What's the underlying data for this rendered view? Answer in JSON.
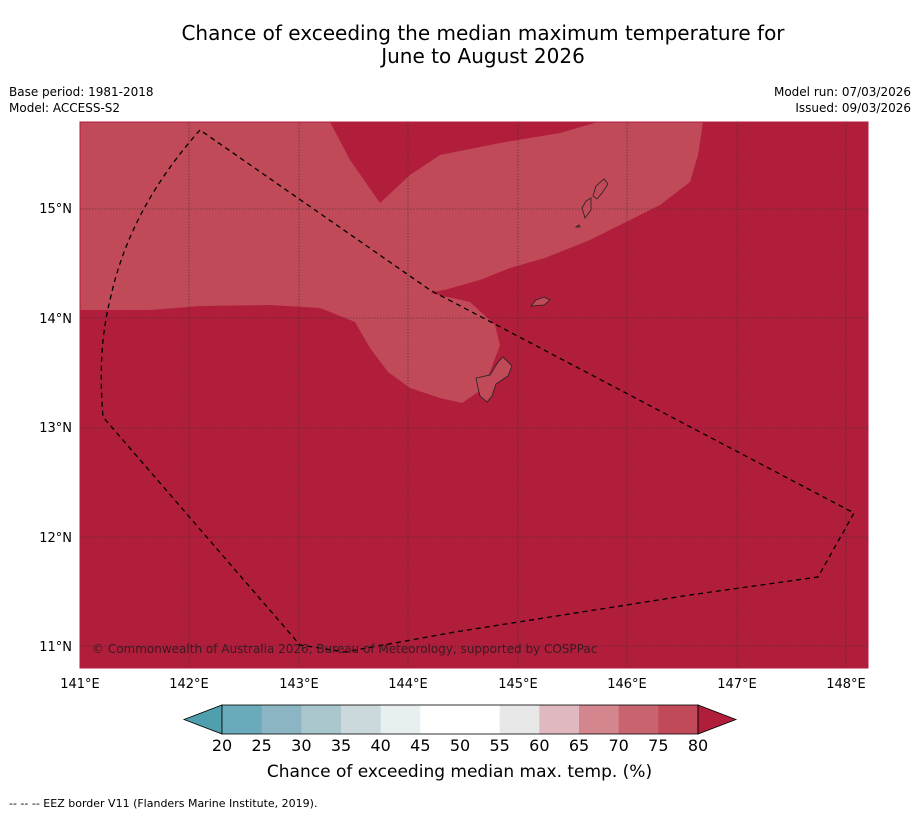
{
  "title_line1": "Chance of exceeding the median maximum temperature for",
  "title_line2": "June to August 2026",
  "base_period": "Base period: 1981-2018",
  "model": "Model: ACCESS-S2",
  "model_run": "Model run: 07/03/2026",
  "issued": "Issued: 09/03/2026",
  "copyright": "© Commonwealth of Australia 2026, Bureau of Meteorology, supported by COSPPac",
  "lat_labels": [
    "15°N",
    "14°N",
    "13°N",
    "12°N",
    "11°N"
  ],
  "lon_labels": [
    "141°E",
    "142°E",
    "143°E",
    "144°E",
    "145°E",
    "146°E",
    "147°E",
    "148°E"
  ],
  "colorbar": {
    "title": "Chance of exceeding median max. temp. (%)",
    "ticks": [
      "20",
      "25",
      "30",
      "35",
      "40",
      "45",
      "50",
      "55",
      "60",
      "65",
      "70",
      "75",
      "80"
    ],
    "colors": [
      "#4f9fae",
      "#6aabbb",
      "#8bb5c2",
      "#a9c6cc",
      "#cbd8dc",
      "#e8eff0",
      "#ffffff",
      "#ffffff",
      "#e8e8e8",
      "#e0b8bf",
      "#d4868f",
      "#c86470",
      "#c04a58",
      "#b01e3c"
    ]
  },
  "map_colors": {
    "above_80": "#b01e3c",
    "range_75_80": "#c04a58"
  },
  "footnote": "--  --  -- EEZ border V11 (Flanders Marine Institute, 2019)."
}
